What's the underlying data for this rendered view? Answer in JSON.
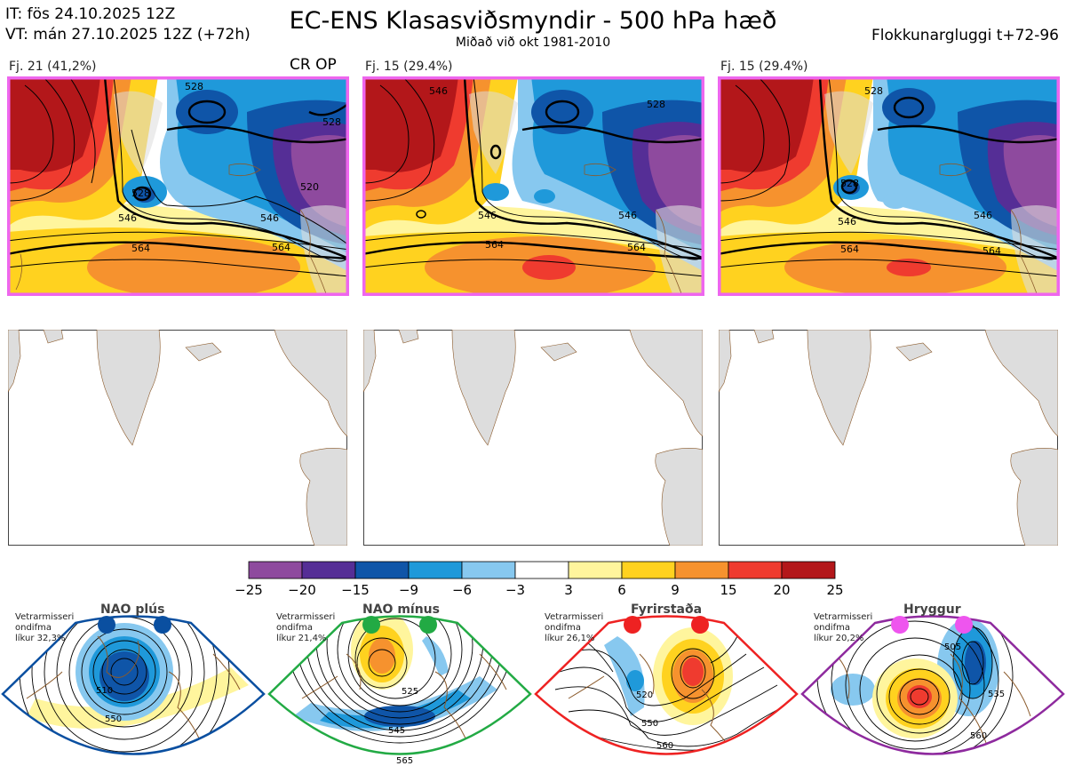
{
  "header": {
    "it": "IT: fös 24.10.2025 12Z",
    "vt": "VT: mán 27.10.2025 12Z  (+72h)",
    "title": "EC-ENS Klasasviðsmyndir - 500 hPa hæð",
    "subtitle": "Miðað við okt 1981-2010",
    "window": "Flokkunargluggi t+72-96"
  },
  "colors": {
    "panel_border": "#ee66ee",
    "land": "#dddddd",
    "coast": "#8b5a2b"
  },
  "panels": [
    {
      "label": "Fj. 21 (41,2%)",
      "tags": "CR OP",
      "contours": [
        "564",
        "546",
        "528",
        "520",
        "528",
        "546",
        "564",
        "528"
      ]
    },
    {
      "label": "Fj. 15 (29.4%)",
      "contours": [
        "564",
        "546",
        "528",
        "564",
        "546",
        "546"
      ]
    },
    {
      "label": "Fj. 15 (29.4%)",
      "contours": [
        "564",
        "546",
        "528",
        "564",
        "546",
        "528"
      ]
    }
  ],
  "colorbar": {
    "ticks": [
      "−25",
      "−20",
      "−15",
      "−9",
      "−6",
      "−3",
      "3",
      "6",
      "9",
      "15",
      "20",
      "25"
    ],
    "colors": [
      "#8e4a9e",
      "#552e96",
      "#0f55a8",
      "#1f99da",
      "#87c8ef",
      "#ffffff",
      "#fff59d",
      "#ffd21f",
      "#f6922e",
      "#ef3b2f",
      "#b3171a"
    ]
  },
  "regimes": [
    {
      "name": "NAO plús",
      "note1": "Vetrarmisseri",
      "note2": "ondifma",
      "note3": "líkur 32,3%",
      "color": "#0a4fa0",
      "labels": [
        "510",
        "550"
      ]
    },
    {
      "name": "NAO mínus",
      "note1": "Vetrarmisseri",
      "note2": "ondifma",
      "note3": "líkur 21,4%",
      "color": "#22aa44",
      "labels": [
        "525",
        "545",
        "565"
      ]
    },
    {
      "name": "Fyrirstaða",
      "note1": "Vetrarmisseri",
      "note2": "ondifma",
      "note3": "líkur 26,1%",
      "color": "#ee2222",
      "labels": [
        "520",
        "550",
        "560"
      ]
    },
    {
      "name": "Hryggur",
      "note1": "Vetrarmisseri",
      "note2": "ondifma",
      "note3": "líkur 20,2%",
      "color": "#ee55ee",
      "labels": [
        "505",
        "535",
        "560"
      ]
    }
  ]
}
